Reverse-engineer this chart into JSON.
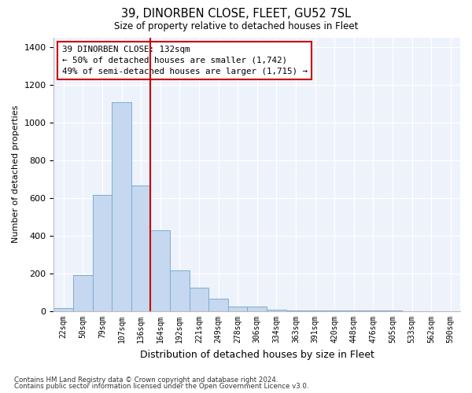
{
  "title1": "39, DINORBEN CLOSE, FLEET, GU52 7SL",
  "title2": "Size of property relative to detached houses in Fleet",
  "xlabel": "Distribution of detached houses by size in Fleet",
  "ylabel": "Number of detached properties",
  "categories": [
    "22sqm",
    "50sqm",
    "79sqm",
    "107sqm",
    "136sqm",
    "164sqm",
    "192sqm",
    "221sqm",
    "249sqm",
    "278sqm",
    "306sqm",
    "334sqm",
    "363sqm",
    "391sqm",
    "420sqm",
    "448sqm",
    "476sqm",
    "505sqm",
    "533sqm",
    "562sqm",
    "590sqm"
  ],
  "values": [
    15,
    190,
    615,
    1105,
    665,
    430,
    215,
    125,
    65,
    25,
    25,
    10,
    5,
    3,
    3,
    3,
    3,
    3,
    2,
    2,
    2
  ],
  "bar_color": "#c5d8ef",
  "bar_edge_color": "#7aadd4",
  "vline_color": "#cc0000",
  "annotation_text": "39 DINORBEN CLOSE: 132sqm\n← 50% of detached houses are smaller (1,742)\n49% of semi-detached houses are larger (1,715) →",
  "annotation_box_color": "#ffffff",
  "annotation_box_edge_color": "#cc0000",
  "ylim": [
    0,
    1450
  ],
  "yticks": [
    0,
    200,
    400,
    600,
    800,
    1000,
    1200,
    1400
  ],
  "footer1": "Contains HM Land Registry data © Crown copyright and database right 2024.",
  "footer2": "Contains public sector information licensed under the Open Government Licence v3.0.",
  "bg_color": "#ffffff",
  "plot_bg_color": "#eef2fb"
}
